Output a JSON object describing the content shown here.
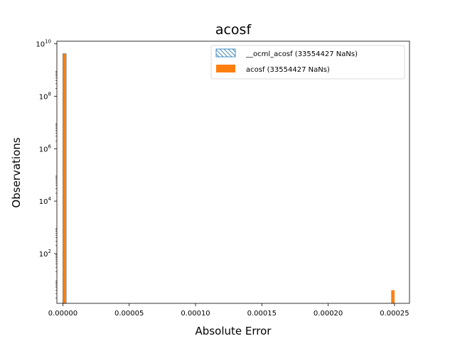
{
  "chart_data": {
    "type": "bar",
    "title": "acosf",
    "xlabel": "Absolute Error",
    "ylabel": "Observations",
    "xlim": [
      -4.5e-06,
      0.0002613
    ],
    "ylim_log10": [
      0.1,
      10.1
    ],
    "log_y": true,
    "grid": false,
    "legend_position": "top-right",
    "x_ticks": [
      {
        "value": 0,
        "label": "0.00000"
      },
      {
        "value": 5e-05,
        "label": "0.00005"
      },
      {
        "value": 0.0001,
        "label": "0.00010"
      },
      {
        "value": 0.00015,
        "label": "0.00015"
      },
      {
        "value": 0.0002,
        "label": "0.00020"
      },
      {
        "value": 0.00025,
        "label": "0.00025"
      }
    ],
    "y_ticks": [
      {
        "exp": 2,
        "base": "10",
        "sup": "2"
      },
      {
        "exp": 4,
        "base": "10",
        "sup": "4"
      },
      {
        "exp": 6,
        "base": "10",
        "sup": "6"
      },
      {
        "exp": 8,
        "base": "10",
        "sup": "8"
      },
      {
        "exp": 10,
        "base": "10",
        "sup": "10"
      }
    ],
    "series": [
      {
        "name": "__ocml_acosf (33554427 NaNs)",
        "style": "hatched-outline",
        "color": "#1f77b4",
        "bars": [
          {
            "x0": 0.0,
            "x1": 2.5e-06,
            "value": 4200000000
          }
        ]
      },
      {
        "name": "acosf (33554427 NaNs)",
        "style": "filled",
        "color": "#ff7f0e",
        "bars": [
          {
            "x0": 0.0,
            "x1": 2.5e-06,
            "value": 4200000000
          },
          {
            "x0": 0.0002475,
            "x1": 0.00025,
            "value": 4
          }
        ]
      }
    ]
  }
}
